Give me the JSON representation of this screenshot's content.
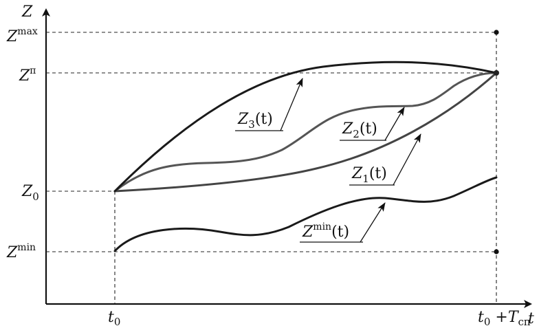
{
  "axes": {
    "y_label": "Z",
    "x_label": "t"
  },
  "y_levels": {
    "zmax": {
      "base": "Z",
      "sup": "max"
    },
    "zn": {
      "base": "Z",
      "sup": "п"
    },
    "z0": {
      "base": "Z",
      "sub": "0"
    },
    "zmin": {
      "base": "Z",
      "sup": "min"
    }
  },
  "x_ticks": {
    "t0": {
      "base": "t",
      "sub": "0"
    },
    "tend": {
      "base": "t",
      "sub": "0",
      "plus": " +",
      "T": "T",
      "Tsub": "сп"
    }
  },
  "curves": {
    "z3": {
      "base": "Z",
      "sub": "3",
      "arg": "(t)",
      "color": "#1a1a1a"
    },
    "z2": {
      "base": "Z",
      "sub": "2",
      "arg": "(t)",
      "color": "#555555"
    },
    "z1": {
      "base": "Z",
      "sub": "1",
      "arg": "(t)",
      "color": "#444444"
    },
    "zmin_t": {
      "base": "Z",
      "sup": "min",
      "arg": "(t)",
      "color": "#1a1a1a"
    }
  }
}
